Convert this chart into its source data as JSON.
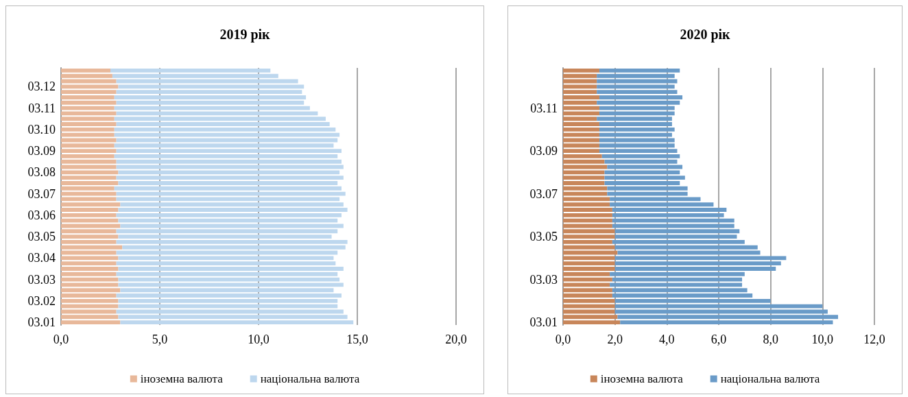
{
  "chart_data": [
    {
      "type": "bar",
      "orientation": "horizontal",
      "stacked": true,
      "title": "2019 рік",
      "legend": "bottom",
      "grid": "x",
      "categories": [
        null,
        null,
        null,
        "03.12",
        null,
        null,
        null,
        "03.11",
        null,
        null,
        null,
        "03.10",
        null,
        null,
        null,
        "03.09",
        null,
        null,
        null,
        "03.08",
        null,
        null,
        null,
        "03.07",
        null,
        null,
        null,
        "03.06",
        null,
        null,
        null,
        "03.05",
        null,
        null,
        null,
        "03.04",
        null,
        null,
        null,
        "03.03",
        null,
        null,
        null,
        "03.02",
        null,
        null,
        null,
        "03.01"
      ],
      "xlim": [
        0,
        20
      ],
      "xticks": [
        {
          "value": 0,
          "label": "0,0"
        },
        {
          "value": 5,
          "label": "5,0"
        },
        {
          "value": 10,
          "label": "10,0"
        },
        {
          "value": 15,
          "label": "15,0"
        },
        {
          "value": 20,
          "label": "20,0"
        }
      ],
      "series": [
        {
          "name": "іноземна валюта",
          "color": "#e8b89a",
          "values": [
            2.5,
            2.6,
            2.8,
            2.9,
            2.8,
            2.7,
            2.8,
            2.7,
            2.8,
            2.7,
            2.8,
            2.7,
            2.7,
            2.8,
            2.7,
            2.8,
            2.7,
            2.8,
            2.8,
            2.9,
            2.8,
            2.9,
            2.7,
            2.8,
            2.8,
            3.0,
            2.9,
            2.8,
            2.9,
            3.0,
            2.8,
            2.9,
            2.8,
            3.1,
            2.8,
            2.9,
            2.8,
            2.9,
            2.8,
            2.9,
            2.9,
            3.0,
            2.8,
            2.9,
            2.9,
            2.8,
            2.9,
            3.0
          ]
        },
        {
          "name": "національна валюта",
          "color": "#bdd7ee",
          "values": [
            8.1,
            8.4,
            9.2,
            9.4,
            9.4,
            9.7,
            9.5,
            9.9,
            10.2,
            10.7,
            10.8,
            11.2,
            11.4,
            11.2,
            11.1,
            11.4,
            11.3,
            11.4,
            11.5,
            11.2,
            11.5,
            11.1,
            11.5,
            11.6,
            11.3,
            11.3,
            11.6,
            11.4,
            11.1,
            11.3,
            11.2,
            10.8,
            11.7,
            11.3,
            11.2,
            10.9,
            11.1,
            11.4,
            11.2,
            11.2,
            11.4,
            10.8,
            11.4,
            11.1,
            11.1,
            11.5,
            11.6,
            11.8
          ]
        }
      ]
    },
    {
      "type": "bar",
      "orientation": "horizontal",
      "stacked": true,
      "title": "2020 рік",
      "legend": "bottom",
      "grid": "x",
      "categories": [
        null,
        null,
        null,
        null,
        null,
        null,
        null,
        "03.11",
        null,
        null,
        null,
        null,
        null,
        null,
        null,
        "03.09",
        null,
        null,
        null,
        null,
        null,
        null,
        null,
        "03.07",
        null,
        null,
        null,
        null,
        null,
        null,
        null,
        "03.05",
        null,
        null,
        null,
        null,
        null,
        null,
        null,
        "03.03",
        null,
        null,
        null,
        null,
        null,
        null,
        null,
        "03.01"
      ],
      "xlim": [
        0,
        12
      ],
      "xticks": [
        {
          "value": 0,
          "label": "0,0"
        },
        {
          "value": 2,
          "label": "2,0"
        },
        {
          "value": 4,
          "label": "4,0"
        },
        {
          "value": 6,
          "label": "6,0"
        },
        {
          "value": 8,
          "label": "8,0"
        },
        {
          "value": 10,
          "label": "10,0"
        },
        {
          "value": 12,
          "label": "12,0"
        }
      ],
      "series": [
        {
          "name": "іноземна валюта",
          "color": "#c8865a",
          "values": [
            1.4,
            1.3,
            1.3,
            1.3,
            1.3,
            1.4,
            1.3,
            1.4,
            1.4,
            1.3,
            1.4,
            1.4,
            1.4,
            1.4,
            1.4,
            1.4,
            1.5,
            1.6,
            1.7,
            1.6,
            1.6,
            1.6,
            1.7,
            1.7,
            1.8,
            1.8,
            1.9,
            1.9,
            1.9,
            1.9,
            2.0,
            2.0,
            1.9,
            2.0,
            2.1,
            2.0,
            2.0,
            2.0,
            1.8,
            1.9,
            1.8,
            1.9,
            1.9,
            2.0,
            2.0,
            2.0,
            2.1,
            2.2
          ]
        },
        {
          "name": "національна валюта",
          "color": "#6a9bc8",
          "values": [
            3.1,
            3.0,
            3.1,
            3.0,
            3.1,
            3.2,
            3.2,
            2.9,
            2.9,
            2.9,
            2.8,
            2.9,
            2.8,
            2.9,
            2.9,
            3.0,
            3.0,
            2.8,
            2.9,
            2.9,
            3.1,
            2.9,
            3.1,
            3.1,
            3.5,
            4.0,
            4.4,
            4.3,
            4.7,
            4.7,
            4.8,
            4.7,
            5.1,
            5.5,
            5.5,
            6.6,
            6.4,
            6.2,
            5.2,
            5.0,
            5.1,
            5.2,
            5.4,
            6.0,
            8.0,
            8.2,
            8.5,
            8.2
          ]
        }
      ]
    }
  ]
}
